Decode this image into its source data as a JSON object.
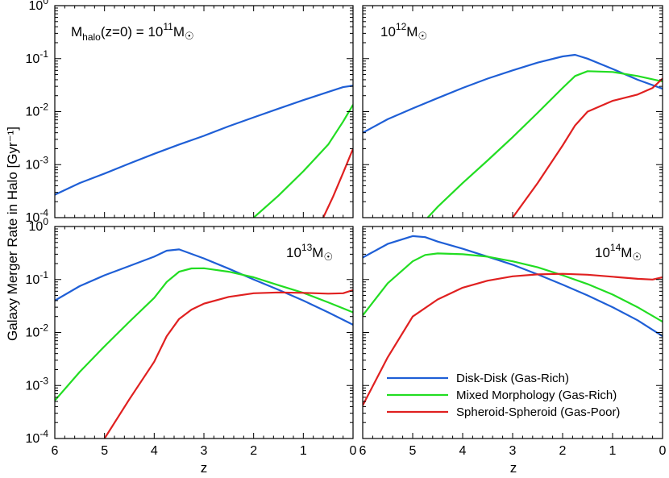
{
  "colors": {
    "disk": "#1f5fd6",
    "mixed": "#22dd22",
    "spheroid": "#e02020"
  },
  "ylabel": "Galaxy Merger Rate in Halo [Gyr⁻¹]",
  "xlabel": "z",
  "legend": [
    {
      "label": "Disk-Disk (Gas-Rich)",
      "color": "#1f5fd6"
    },
    {
      "label": "Mixed Morphology (Gas-Rich)",
      "color": "#22dd22"
    },
    {
      "label": "Spheroid-Spheroid (Gas-Poor)",
      "color": "#e02020"
    }
  ],
  "panel_labels": [
    {
      "mass": "M",
      "sub": "halo",
      "mid": "(z=0) = 10",
      "sup": "11",
      "tail": "M",
      "sun": "☉"
    },
    {
      "mass": "",
      "sub": "",
      "mid": "10",
      "sup": "12",
      "tail": "M",
      "sun": "☉"
    },
    {
      "mass": "",
      "sub": "",
      "mid": "10",
      "sup": "13",
      "tail": "M",
      "sun": "☉"
    },
    {
      "mass": "",
      "sub": "",
      "mid": "10",
      "sup": "14",
      "tail": "M",
      "sun": "☉"
    }
  ],
  "chart_data": [
    {
      "type": "line",
      "panel": "top-left",
      "label": "Mhalo(z=0) = 10^11 Msun",
      "xlabel": "z",
      "ylabel": "Galaxy Merger Rate in Halo [Gyr^-1]",
      "xlim": [
        6,
        0
      ],
      "ylim": [
        0.0001,
        1
      ],
      "yscale": "log",
      "xticks": [
        "6",
        "5",
        "4",
        "3",
        "2",
        "1",
        "0"
      ],
      "yticks": [
        "10^-4",
        "10^-3",
        "10^-2",
        "10^-1",
        "10^0"
      ],
      "series": [
        {
          "name": "Disk-Disk (Gas-Rich)",
          "key": "disk",
          "x": [
            6,
            5.5,
            5,
            4.5,
            4,
            3.5,
            3,
            2.5,
            2,
            1.5,
            1,
            0.5,
            0.2,
            0
          ],
          "y": [
            0.00027,
            0.00045,
            0.00068,
            0.00105,
            0.0016,
            0.0024,
            0.0035,
            0.0053,
            0.0078,
            0.0114,
            0.0165,
            0.0235,
            0.029,
            0.031
          ]
        },
        {
          "name": "Mixed Morphology (Gas-Rich)",
          "key": "mixed",
          "x": [
            2.0,
            1.5,
            1.0,
            0.5,
            0.2,
            0
          ],
          "y": [
            0.0001,
            0.00026,
            0.00075,
            0.0024,
            0.0065,
            0.0135
          ]
        },
        {
          "name": "Spheroid-Spheroid (Gas-Poor)",
          "key": "spheroid",
          "x": [
            0.6,
            0.4,
            0.2,
            0
          ],
          "y": [
            0.0001,
            0.00025,
            0.0007,
            0.002
          ]
        }
      ]
    },
    {
      "type": "line",
      "panel": "top-right",
      "label": "10^12 Msun",
      "xlim": [
        6,
        0
      ],
      "ylim": [
        0.0001,
        1
      ],
      "yscale": "log",
      "series": [
        {
          "name": "Disk-Disk (Gas-Rich)",
          "key": "disk",
          "x": [
            6,
            5.5,
            5,
            4.5,
            4,
            3.5,
            3,
            2.5,
            2,
            1.75,
            1.5,
            1,
            0.5,
            0
          ],
          "y": [
            0.004,
            0.0072,
            0.0115,
            0.018,
            0.028,
            0.042,
            0.06,
            0.084,
            0.11,
            0.118,
            0.1,
            0.064,
            0.04,
            0.027
          ]
        },
        {
          "name": "Mixed Morphology (Gas-Rich)",
          "key": "mixed",
          "x": [
            4.7,
            4.5,
            4,
            3.5,
            3,
            2.5,
            2,
            1.75,
            1.5,
            1.0,
            0.5,
            0
          ],
          "y": [
            0.0001,
            0.00016,
            0.00045,
            0.0012,
            0.0033,
            0.0095,
            0.028,
            0.047,
            0.058,
            0.056,
            0.047,
            0.037
          ]
        },
        {
          "name": "Spheroid-Spheroid (Gas-Poor)",
          "key": "spheroid",
          "x": [
            3.0,
            2.5,
            2.0,
            1.75,
            1.5,
            1.0,
            0.5,
            0.2,
            0
          ],
          "y": [
            0.0001,
            0.00045,
            0.0023,
            0.0055,
            0.01,
            0.016,
            0.021,
            0.028,
            0.042
          ]
        }
      ]
    },
    {
      "type": "line",
      "panel": "bottom-left",
      "label": "10^13 Msun",
      "xlim": [
        6,
        0
      ],
      "ylim": [
        0.0001,
        1
      ],
      "yscale": "log",
      "series": [
        {
          "name": "Disk-Disk (Gas-Rich)",
          "key": "disk",
          "x": [
            6,
            5.5,
            5,
            4.5,
            4,
            3.75,
            3.5,
            3,
            2.5,
            2,
            1.5,
            1,
            0.5,
            0
          ],
          "y": [
            0.04,
            0.075,
            0.12,
            0.18,
            0.27,
            0.35,
            0.37,
            0.25,
            0.16,
            0.1,
            0.064,
            0.04,
            0.024,
            0.014
          ]
        },
        {
          "name": "Mixed Morphology (Gas-Rich)",
          "key": "mixed",
          "x": [
            6,
            5.5,
            5,
            4.5,
            4,
            3.75,
            3.5,
            3.25,
            3,
            2.5,
            2,
            1.5,
            1,
            0.5,
            0
          ],
          "y": [
            0.00052,
            0.0018,
            0.0055,
            0.016,
            0.045,
            0.09,
            0.14,
            0.162,
            0.163,
            0.14,
            0.11,
            0.078,
            0.056,
            0.037,
            0.024
          ]
        },
        {
          "name": "Spheroid-Spheroid (Gas-Poor)",
          "key": "spheroid",
          "x": [
            5.0,
            4.5,
            4.0,
            3.75,
            3.5,
            3.25,
            3,
            2.5,
            2,
            1.5,
            1,
            0.5,
            0.2,
            0
          ],
          "y": [
            0.0001,
            0.00055,
            0.0028,
            0.0085,
            0.018,
            0.027,
            0.035,
            0.047,
            0.055,
            0.057,
            0.056,
            0.054,
            0.055,
            0.063
          ]
        }
      ]
    },
    {
      "type": "line",
      "panel": "bottom-right",
      "label": "10^14 Msun",
      "xlim": [
        6,
        0
      ],
      "ylim": [
        0.0001,
        1
      ],
      "yscale": "log",
      "series": [
        {
          "name": "Disk-Disk (Gas-Rich)",
          "key": "disk",
          "x": [
            6,
            5.5,
            5,
            4.75,
            4.5,
            4,
            3.5,
            3,
            2.5,
            2,
            1.5,
            1,
            0.5,
            0
          ],
          "y": [
            0.26,
            0.47,
            0.66,
            0.63,
            0.52,
            0.38,
            0.27,
            0.19,
            0.125,
            0.08,
            0.05,
            0.03,
            0.017,
            0.0085
          ]
        },
        {
          "name": "Mixed Morphology (Gas-Rich)",
          "key": "mixed",
          "x": [
            6,
            5.5,
            5,
            4.75,
            4.5,
            4,
            3.5,
            3,
            2.5,
            2,
            1.5,
            1,
            0.5,
            0
          ],
          "y": [
            0.021,
            0.085,
            0.22,
            0.29,
            0.31,
            0.3,
            0.27,
            0.22,
            0.17,
            0.12,
            0.082,
            0.052,
            0.03,
            0.016
          ]
        },
        {
          "name": "Spheroid-Spheroid (Gas-Poor)",
          "key": "spheroid",
          "x": [
            6,
            5.5,
            5,
            4.5,
            4,
            3.5,
            3,
            2.5,
            2,
            1.5,
            1,
            0.5,
            0.2,
            0
          ],
          "y": [
            0.00042,
            0.0034,
            0.02,
            0.042,
            0.07,
            0.095,
            0.115,
            0.125,
            0.128,
            0.123,
            0.113,
            0.103,
            0.1,
            0.11
          ]
        }
      ]
    }
  ]
}
